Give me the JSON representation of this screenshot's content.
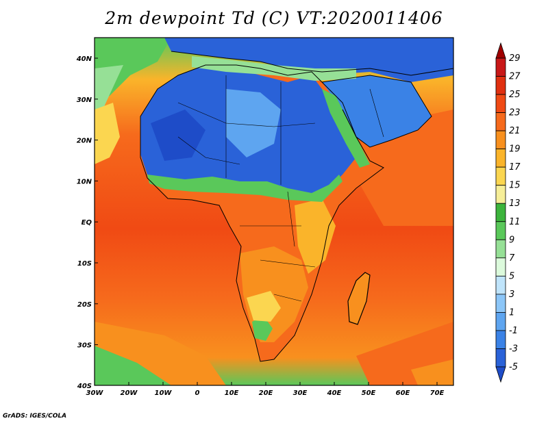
{
  "title": "2m dewpoint Td (C) VT:2020011406",
  "credit": "GrADS: IGES/COLA",
  "map": {
    "lon_range": [
      -30,
      75
    ],
    "lat_range": [
      -40,
      45
    ],
    "lon_ticks": [
      "30W",
      "20W",
      "10W",
      "0",
      "10E",
      "20E",
      "30E",
      "40E",
      "50E",
      "60E",
      "70E"
    ],
    "lat_ticks": [
      "40N",
      "30N",
      "20N",
      "10N",
      "EQ",
      "10S",
      "20S",
      "30S",
      "40S"
    ]
  },
  "colorbar": {
    "labels": [
      "29",
      "27",
      "25",
      "23",
      "21",
      "19",
      "17",
      "15",
      "13",
      "11",
      "9",
      "7",
      "5",
      "3",
      "1",
      "-1",
      "-3",
      "-5"
    ],
    "colors": [
      "#a00000",
      "#c81818",
      "#e03010",
      "#f04a14",
      "#f66a1c",
      "#f8901e",
      "#fab42a",
      "#fbd650",
      "#f6ee98",
      "#3cb43c",
      "#5ac85a",
      "#96e096",
      "#dcfadc",
      "#bfe4fb",
      "#8cc6f8",
      "#5ea5f0",
      "#3a82e6",
      "#2a62d8",
      "#1e4cc8"
    ]
  }
}
